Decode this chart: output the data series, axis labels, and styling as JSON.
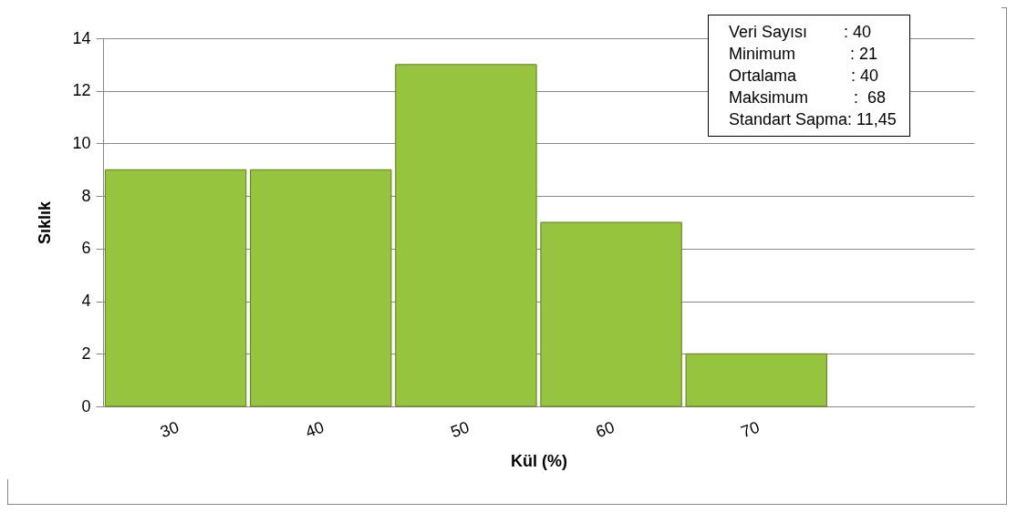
{
  "chart_data": {
    "type": "bar",
    "xlabel": "Kül (%)",
    "ylabel": "Sıklık",
    "categories": [
      "30",
      "40",
      "50",
      "60",
      "70",
      null
    ],
    "values": [
      9,
      9,
      13,
      7,
      2,
      null
    ],
    "color": "#96c43f",
    "ylim": [
      0,
      14
    ],
    "yticks": [
      0,
      2,
      4,
      6,
      8,
      10,
      12,
      14
    ],
    "grid": "y",
    "annotations": [
      "Veri Sayısı        : 40",
      "Minimum            : 21",
      "Ortalama            : 40",
      "Maksimum          :  68",
      "Standart Sapma: 11,45"
    ]
  }
}
